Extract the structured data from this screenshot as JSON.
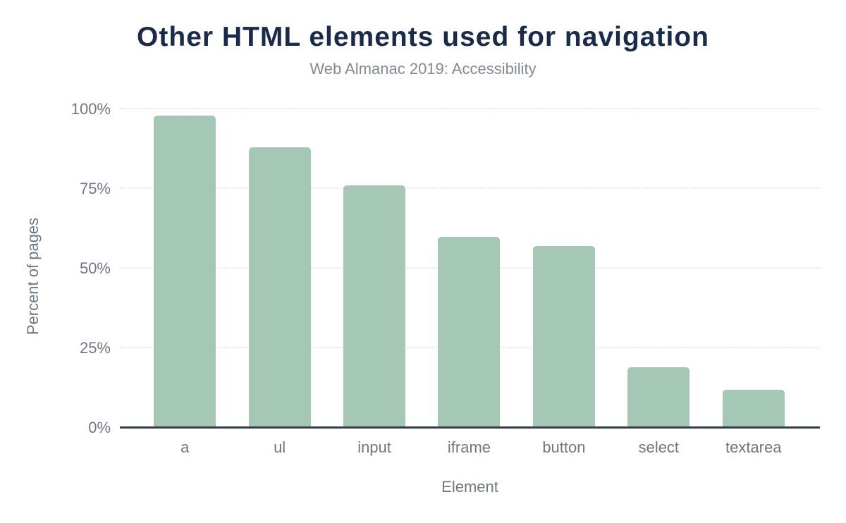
{
  "chart_data": {
    "type": "bar",
    "title": "Other HTML elements used for navigation",
    "subtitle": "Web Almanac 2019: Accessibility",
    "xlabel": "Element",
    "ylabel": "Percent of pages",
    "categories": [
      "a",
      "ul",
      "input",
      "iframe",
      "button",
      "select",
      "textarea"
    ],
    "values": [
      98,
      88,
      76,
      60,
      57,
      19,
      12
    ],
    "ylim": [
      0,
      100
    ],
    "yticks": [
      0,
      25,
      50,
      75,
      100
    ],
    "ytick_labels": [
      "0%",
      "25%",
      "50%",
      "75%",
      "100%"
    ],
    "grid": true,
    "gridline_style": "dotted",
    "legend": false,
    "colors": {
      "background": "#ffffff",
      "bar": "#a5c8b6",
      "title": "#1a2b49",
      "subtitle": "#828a91",
      "tick_label": "#6e7880",
      "gridline": "#e6e8ea",
      "axis_line": "#333e48"
    }
  }
}
